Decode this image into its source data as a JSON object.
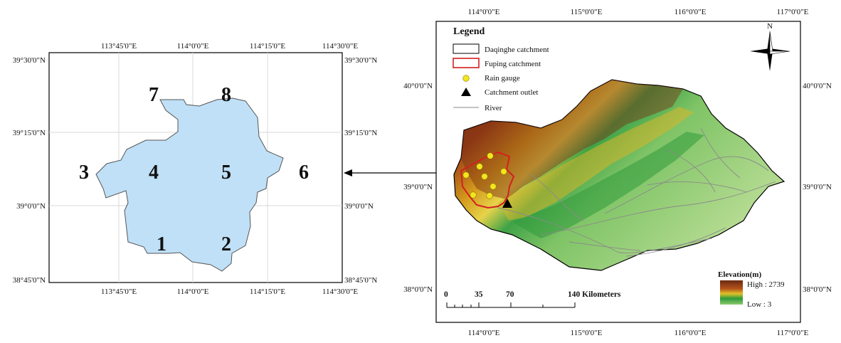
{
  "left_map": {
    "top_lon_labels": [
      "113°45'0\"E",
      "114°0'0\"E",
      "114°15'0\"E",
      "114°30'0\"E"
    ],
    "bottom_lon_labels": [
      "113°45'0\"E",
      "114°0'0\"E",
      "114°15'0\"E",
      "114°30'0\"E"
    ],
    "left_lat_labels": [
      "39°30'0\"N",
      "39°15'0\"N",
      "39°0'0\"N",
      "38°45'0\"N"
    ],
    "right_lat_labels": [
      "39°30'0\"N",
      "39°15'0\"N",
      "39°0'0\"N",
      "38°45'0\"N"
    ],
    "zones": [
      "1",
      "2",
      "3",
      "4",
      "5",
      "6",
      "7",
      "8"
    ],
    "fill_color": "#bfe0f7"
  },
  "right_map": {
    "top_lon_labels": [
      "114°0'0\"E",
      "115°0'0\"E",
      "116°0'0\"E",
      "117°0'0\"E"
    ],
    "bottom_lon_labels": [
      "114°0'0\"E",
      "115°0'0\"E",
      "116°0'0\"E",
      "117°0'0\"E"
    ],
    "left_lat_labels": [
      "40°0'0\"N",
      "39°0'0\"N",
      "38°0'0\"N"
    ],
    "right_lat_labels": [
      "40°0'0\"N",
      "39°0'0\"N",
      "38°0'0\"N"
    ],
    "legend": {
      "title": "Legend",
      "items": [
        {
          "label": "Daqinghe catchment",
          "symbol": "box-black"
        },
        {
          "label": "Fuping catchment",
          "symbol": "box-red"
        },
        {
          "label": "Rain gauge",
          "symbol": "dot-yellow"
        },
        {
          "label": "Catchment outlet",
          "symbol": "triangle-black"
        },
        {
          "label": "River",
          "symbol": "line-gray"
        }
      ]
    },
    "north_label": "N",
    "elevation": {
      "title": "Elevation(m)",
      "high": "High : 2739",
      "low": "Low : 3",
      "colors": [
        "#6b2a12",
        "#b5531b",
        "#d8a21a",
        "#f0e04a",
        "#2e9a3a",
        "#8fcb6e",
        "#b8dc92"
      ]
    },
    "scale_bar": {
      "labels": [
        "0",
        "35",
        "70",
        "140 Kilometers"
      ]
    }
  },
  "colors": {
    "fuping_outline": "#d42020",
    "gauge": "#f3e51f",
    "river": "#8a8a8a",
    "frame": "#000000"
  }
}
